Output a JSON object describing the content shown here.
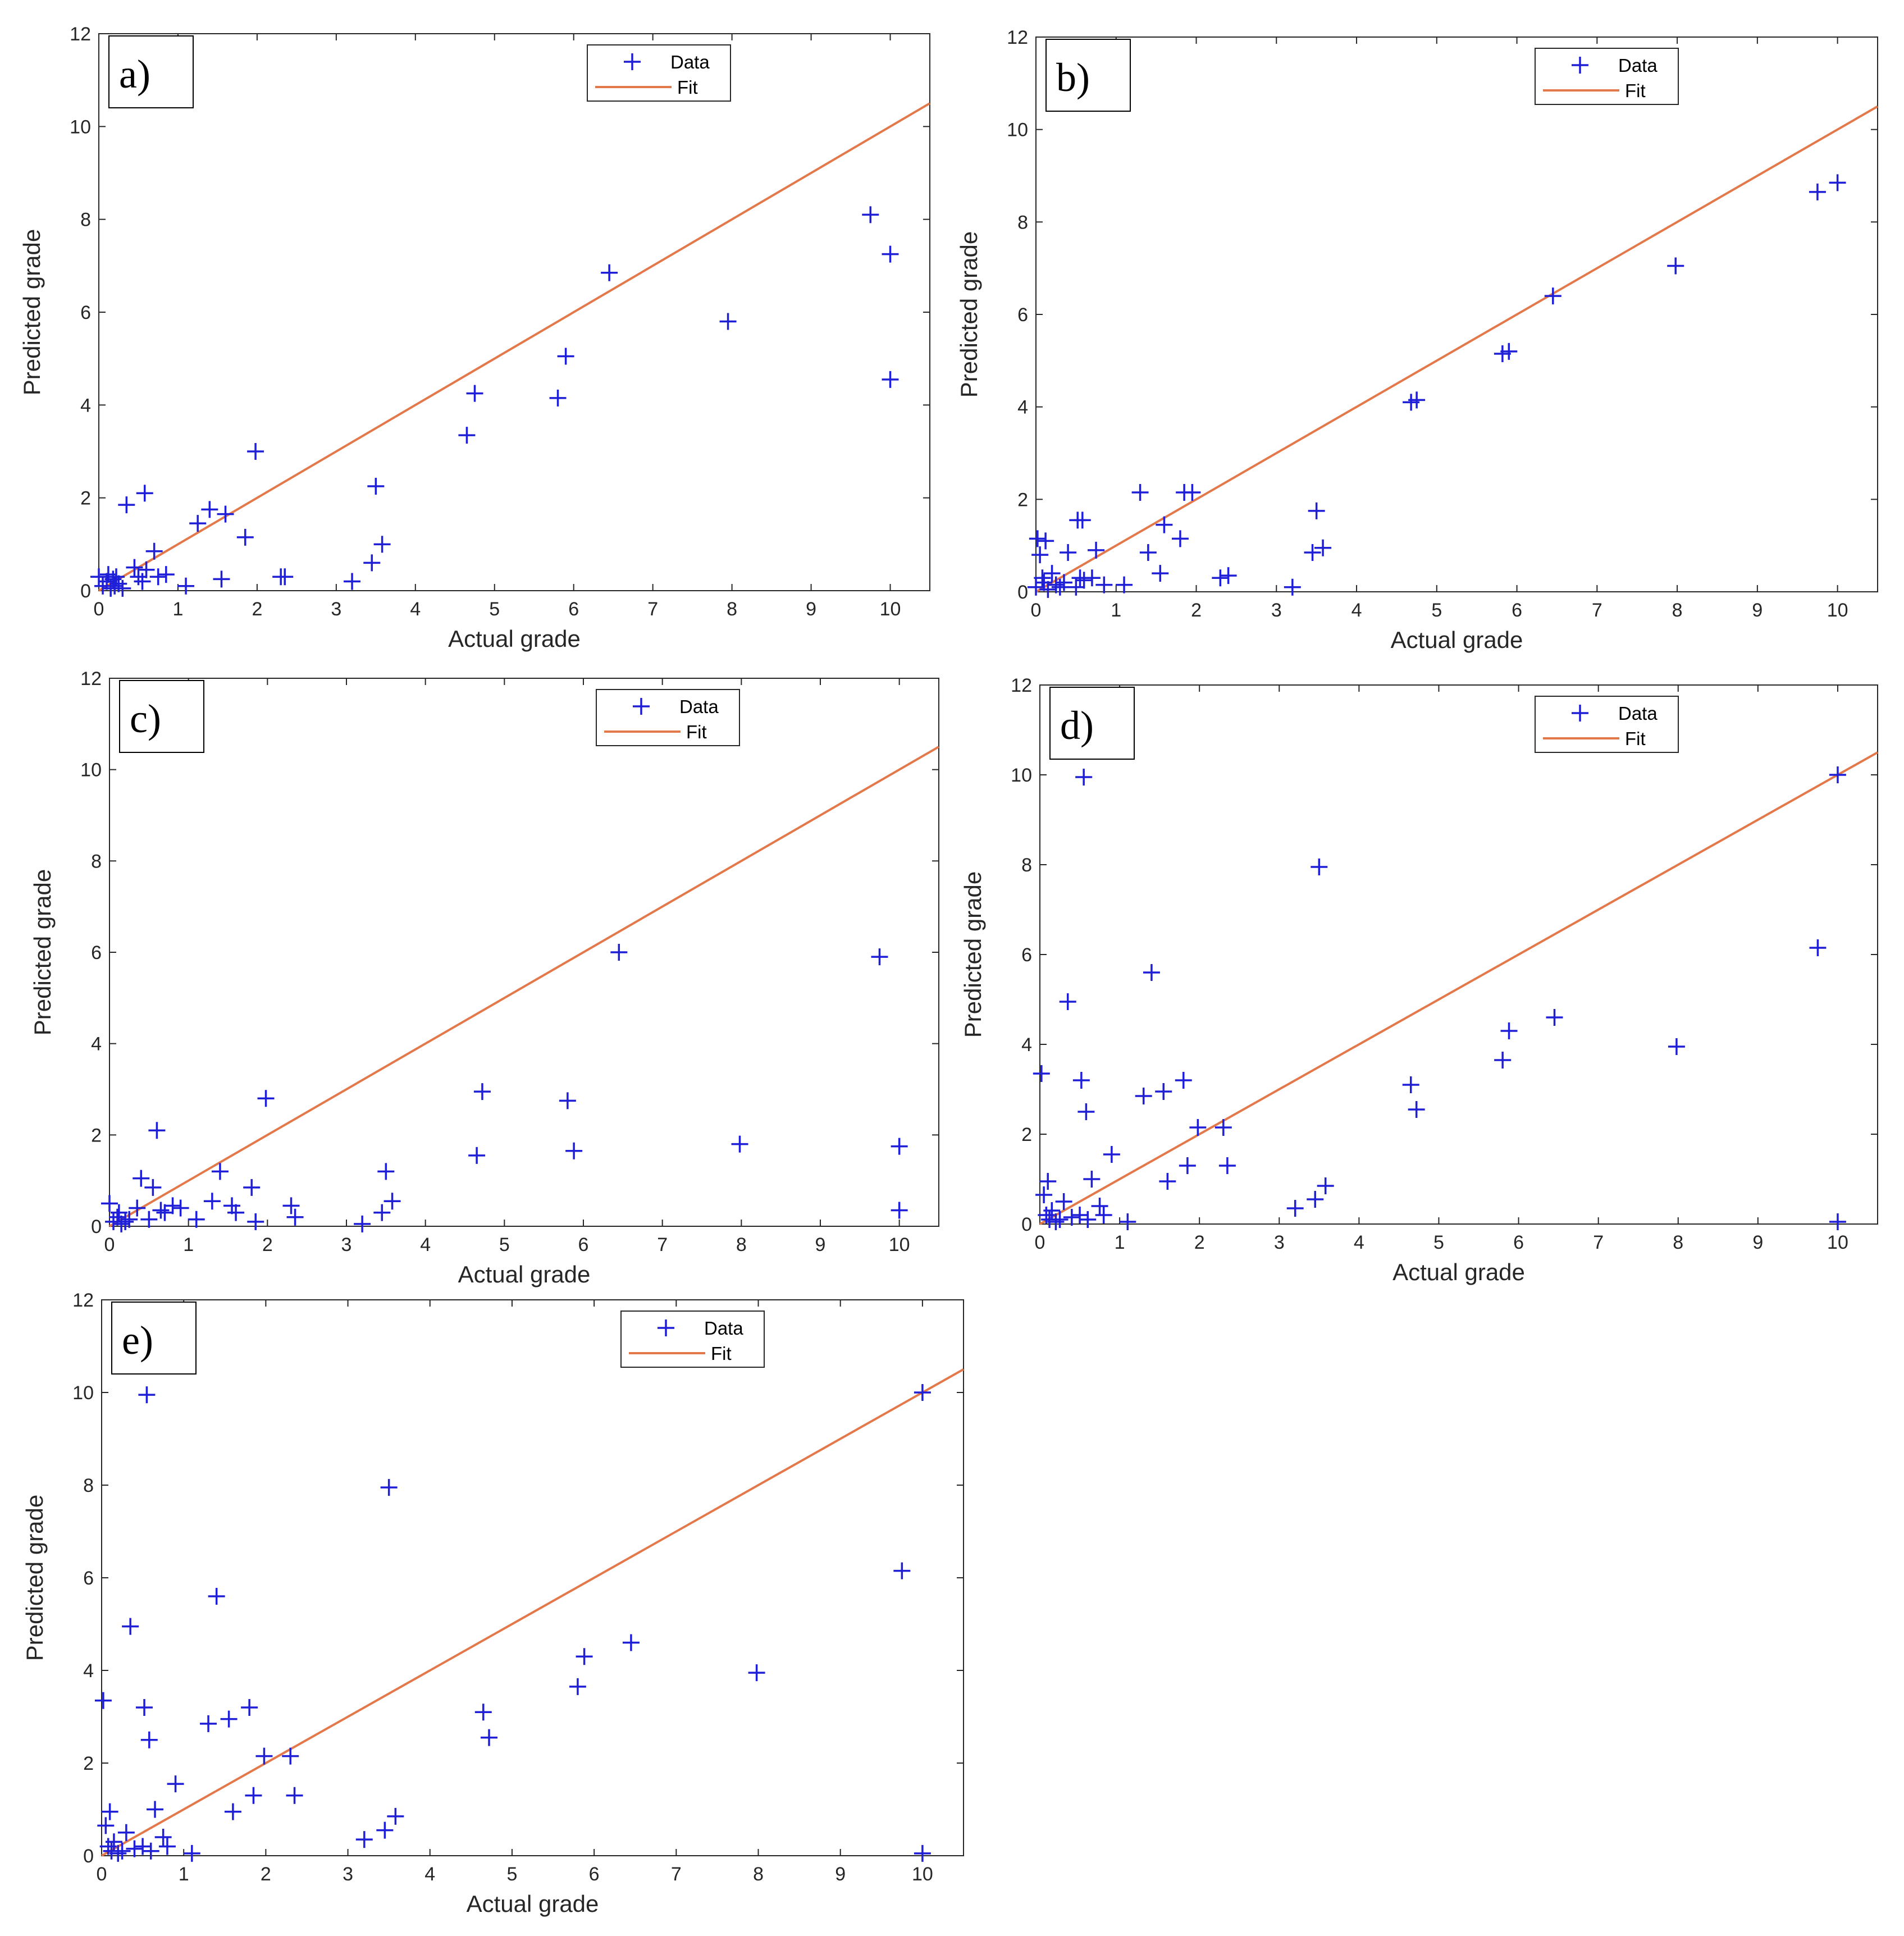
{
  "colors": {
    "data": "#1f1fd8",
    "fit": "#e3784a",
    "axis": "#262626"
  },
  "chart_data": [
    {
      "type": "scatter",
      "panel_label": "a)",
      "xlabel": "Actual grade",
      "ylabel": "Predicted grade",
      "xlim": [
        0,
        10.5
      ],
      "ylim": [
        0,
        12
      ],
      "xticks": [
        "0",
        "1",
        "2",
        "3",
        "4",
        "5",
        "6",
        "7",
        "8",
        "9",
        "10"
      ],
      "yticks": [
        "0",
        "2",
        "4",
        "6",
        "8",
        "10",
        "12"
      ],
      "legend": {
        "data_label": "Data",
        "fit_label": "Fit",
        "position": "top-right"
      },
      "fit": {
        "x": [
          0,
          10.5
        ],
        "y": [
          0,
          10.5
        ]
      },
      "series": [
        {
          "name": "Data",
          "points": [
            [
              0,
              0.3
            ],
            [
              0.05,
              0.1
            ],
            [
              0.1,
              0.2
            ],
            [
              0.12,
              0.35
            ],
            [
              0.15,
              0.05
            ],
            [
              0.18,
              0.25
            ],
            [
              0.2,
              0.1
            ],
            [
              0.22,
              0.3
            ],
            [
              0.25,
              0.15
            ],
            [
              0.3,
              0.05
            ],
            [
              0.35,
              1.85
            ],
            [
              0.45,
              0.5
            ],
            [
              0.5,
              0.3
            ],
            [
              0.55,
              0.2
            ],
            [
              0.58,
              2.1
            ],
            [
              0.6,
              0.45
            ],
            [
              0.7,
              0.85
            ],
            [
              0.75,
              0.3
            ],
            [
              0.85,
              0.35
            ],
            [
              1.1,
              0.1
            ],
            [
              1.25,
              1.45
            ],
            [
              1.4,
              1.75
            ],
            [
              1.55,
              0.25
            ],
            [
              1.6,
              1.65
            ],
            [
              1.85,
              1.15
            ],
            [
              1.98,
              3.0
            ],
            [
              2.3,
              0.3
            ],
            [
              2.35,
              0.3
            ],
            [
              3.2,
              0.2
            ],
            [
              3.45,
              0.6
            ],
            [
              3.5,
              2.25
            ],
            [
              3.58,
              1.0
            ],
            [
              4.65,
              3.35
            ],
            [
              4.75,
              4.25
            ],
            [
              5.8,
              4.15
            ],
            [
              5.9,
              5.05
            ],
            [
              6.45,
              6.85
            ],
            [
              7.95,
              5.8
            ],
            [
              9.75,
              8.1
            ],
            [
              10.0,
              7.25
            ],
            [
              10.0,
              4.55
            ]
          ]
        }
      ]
    },
    {
      "type": "scatter",
      "panel_label": "b)",
      "xlabel": "Actual grade",
      "ylabel": "Predicted grade",
      "xlim": [
        0,
        10.5
      ],
      "ylim": [
        0,
        12
      ],
      "xticks": [
        "0",
        "1",
        "2",
        "3",
        "4",
        "5",
        "6",
        "7",
        "8",
        "9",
        "10"
      ],
      "yticks": [
        "0",
        "2",
        "4",
        "6",
        "8",
        "10",
        "12"
      ],
      "legend": {
        "data_label": "Data",
        "fit_label": "Fit",
        "position": "top-right"
      },
      "fit": {
        "x": [
          0,
          10.5
        ],
        "y": [
          0,
          10.5
        ]
      },
      "series": [
        {
          "name": "Data",
          "points": [
            [
              0,
              0.1
            ],
            [
              0.02,
              1.15
            ],
            [
              0.05,
              0.8
            ],
            [
              0.08,
              0.3
            ],
            [
              0.1,
              0.2
            ],
            [
              0.12,
              1.1
            ],
            [
              0.15,
              0.05
            ],
            [
              0.2,
              0.4
            ],
            [
              0.25,
              0.15
            ],
            [
              0.3,
              0.1
            ],
            [
              0.35,
              0.2
            ],
            [
              0.4,
              0.85
            ],
            [
              0.5,
              0.1
            ],
            [
              0.52,
              1.55
            ],
            [
              0.55,
              0.3
            ],
            [
              0.58,
              1.55
            ],
            [
              0.6,
              0.25
            ],
            [
              0.7,
              0.3
            ],
            [
              0.75,
              0.9
            ],
            [
              0.85,
              0.15
            ],
            [
              1.1,
              0.15
            ],
            [
              1.3,
              2.15
            ],
            [
              1.4,
              0.85
            ],
            [
              1.55,
              0.4
            ],
            [
              1.6,
              1.45
            ],
            [
              1.8,
              1.15
            ],
            [
              1.85,
              2.15
            ],
            [
              1.95,
              2.15
            ],
            [
              2.3,
              0.3
            ],
            [
              2.4,
              0.35
            ],
            [
              3.2,
              0.1
            ],
            [
              3.45,
              0.85
            ],
            [
              3.5,
              1.75
            ],
            [
              3.58,
              0.95
            ],
            [
              4.68,
              4.1
            ],
            [
              4.75,
              4.15
            ],
            [
              5.82,
              5.15
            ],
            [
              5.9,
              5.2
            ],
            [
              6.45,
              6.4
            ],
            [
              7.98,
              7.05
            ],
            [
              9.75,
              8.65
            ],
            [
              10.0,
              8.85
            ]
          ]
        }
      ]
    },
    {
      "type": "scatter",
      "panel_label": "c)",
      "xlabel": "Actual grade",
      "ylabel": "Predicted grade",
      "xlim": [
        0,
        10.5
      ],
      "ylim": [
        0,
        12
      ],
      "xticks": [
        "0",
        "1",
        "2",
        "3",
        "4",
        "5",
        "6",
        "7",
        "8",
        "9",
        "10"
      ],
      "yticks": [
        "0",
        "2",
        "4",
        "6",
        "8",
        "10",
        "12"
      ],
      "legend": {
        "data_label": "Data",
        "fit_label": "Fit",
        "position": "top-right"
      },
      "fit": {
        "x": [
          0,
          10.5
        ],
        "y": [
          0,
          10.5
        ]
      },
      "series": [
        {
          "name": "Data",
          "points": [
            [
              0,
              0.5
            ],
            [
              0.05,
              0.1
            ],
            [
              0.1,
              0.2
            ],
            [
              0.12,
              0.3
            ],
            [
              0.15,
              0.05
            ],
            [
              0.2,
              0.1
            ],
            [
              0.25,
              0.15
            ],
            [
              0.35,
              0.4
            ],
            [
              0.4,
              1.05
            ],
            [
              0.5,
              0.15
            ],
            [
              0.55,
              0.85
            ],
            [
              0.6,
              2.1
            ],
            [
              0.65,
              0.35
            ],
            [
              0.7,
              0.3
            ],
            [
              0.8,
              0.45
            ],
            [
              0.9,
              0.4
            ],
            [
              1.1,
              0.15
            ],
            [
              1.3,
              0.55
            ],
            [
              1.4,
              1.2
            ],
            [
              1.55,
              0.45
            ],
            [
              1.6,
              0.3
            ],
            [
              1.8,
              0.85
            ],
            [
              1.85,
              0.1
            ],
            [
              1.98,
              2.8
            ],
            [
              2.3,
              0.45
            ],
            [
              2.35,
              0.2
            ],
            [
              3.2,
              0.05
            ],
            [
              3.45,
              0.3
            ],
            [
              3.5,
              1.2
            ],
            [
              3.58,
              0.55
            ],
            [
              4.65,
              1.55
            ],
            [
              4.72,
              2.95
            ],
            [
              5.8,
              2.75
            ],
            [
              5.88,
              1.65
            ],
            [
              6.45,
              6.0
            ],
            [
              7.98,
              1.8
            ],
            [
              9.75,
              5.9
            ],
            [
              10.0,
              1.75
            ],
            [
              10.0,
              0.35
            ]
          ]
        }
      ]
    },
    {
      "type": "scatter",
      "panel_label": "d)",
      "xlabel": "Actual grade",
      "ylabel": "Predicted grade",
      "xlim": [
        0,
        10.5
      ],
      "ylim": [
        0,
        12
      ],
      "xticks": [
        "0",
        "1",
        "2",
        "3",
        "4",
        "5",
        "6",
        "7",
        "8",
        "9",
        "10"
      ],
      "yticks": [
        "0",
        "2",
        "4",
        "6",
        "8",
        "10",
        "12"
      ],
      "legend": {
        "data_label": "Data",
        "fit_label": "Fit",
        "position": "top-right"
      },
      "fit": {
        "x": [
          0,
          10.5
        ],
        "y": [
          0,
          10.5
        ]
      },
      "series": [
        {
          "name": "Data",
          "points": [
            [
              0.02,
              3.35
            ],
            [
              0.05,
              0.65
            ],
            [
              0.08,
              0.2
            ],
            [
              0.1,
              0.95
            ],
            [
              0.12,
              0.1
            ],
            [
              0.15,
              0.3
            ],
            [
              0.2,
              0.05
            ],
            [
              0.25,
              0.1
            ],
            [
              0.3,
              0.5
            ],
            [
              0.35,
              4.95
            ],
            [
              0.4,
              0.15
            ],
            [
              0.5,
              0.2
            ],
            [
              0.52,
              3.2
            ],
            [
              0.55,
              9.95
            ],
            [
              0.58,
              2.5
            ],
            [
              0.6,
              0.1
            ],
            [
              0.65,
              1.0
            ],
            [
              0.75,
              0.4
            ],
            [
              0.8,
              0.2
            ],
            [
              0.9,
              1.55
            ],
            [
              1.1,
              0.05
            ],
            [
              1.3,
              2.85
            ],
            [
              1.4,
              5.6
            ],
            [
              1.55,
              2.95
            ],
            [
              1.6,
              0.95
            ],
            [
              1.8,
              3.2
            ],
            [
              1.85,
              1.3
            ],
            [
              1.98,
              2.15
            ],
            [
              2.3,
              2.15
            ],
            [
              2.35,
              1.3
            ],
            [
              3.2,
              0.35
            ],
            [
              3.45,
              0.55
            ],
            [
              3.5,
              7.95
            ],
            [
              3.58,
              0.85
            ],
            [
              4.65,
              3.1
            ],
            [
              4.72,
              2.55
            ],
            [
              5.8,
              3.65
            ],
            [
              5.88,
              4.3
            ],
            [
              6.45,
              4.6
            ],
            [
              7.98,
              3.95
            ],
            [
              9.75,
              6.15
            ],
            [
              10.0,
              10.0
            ],
            [
              10.0,
              0.05
            ]
          ]
        }
      ]
    },
    {
      "type": "scatter",
      "panel_label": "e)",
      "xlabel": "Actual grade",
      "ylabel": "Predicted grade",
      "xlim": [
        0,
        10.5
      ],
      "ylim": [
        0,
        12
      ],
      "xticks": [
        "0",
        "1",
        "2",
        "3",
        "4",
        "5",
        "6",
        "7",
        "8",
        "9",
        "10"
      ],
      "yticks": [
        "0",
        "2",
        "4",
        "6",
        "8",
        "10",
        "12"
      ],
      "legend": {
        "data_label": "Data",
        "fit_label": "Fit",
        "position": "top-right"
      },
      "fit": {
        "x": [
          0,
          10.5
        ],
        "y": [
          0,
          10.5
        ]
      },
      "series": [
        {
          "name": "Data",
          "points": [
            [
              0.02,
              3.35
            ],
            [
              0.05,
              0.65
            ],
            [
              0.08,
              0.2
            ],
            [
              0.1,
              0.95
            ],
            [
              0.12,
              0.1
            ],
            [
              0.15,
              0.3
            ],
            [
              0.2,
              0.05
            ],
            [
              0.25,
              0.1
            ],
            [
              0.3,
              0.5
            ],
            [
              0.35,
              4.95
            ],
            [
              0.4,
              0.15
            ],
            [
              0.5,
              0.2
            ],
            [
              0.52,
              3.2
            ],
            [
              0.55,
              9.95
            ],
            [
              0.58,
              2.5
            ],
            [
              0.6,
              0.1
            ],
            [
              0.65,
              1.0
            ],
            [
              0.75,
              0.4
            ],
            [
              0.8,
              0.2
            ],
            [
              0.9,
              1.55
            ],
            [
              1.1,
              0.05
            ],
            [
              1.3,
              2.85
            ],
            [
              1.4,
              5.6
            ],
            [
              1.55,
              2.95
            ],
            [
              1.6,
              0.95
            ],
            [
              1.8,
              3.2
            ],
            [
              1.85,
              1.3
            ],
            [
              1.98,
              2.15
            ],
            [
              2.3,
              2.15
            ],
            [
              2.35,
              1.3
            ],
            [
              3.2,
              0.35
            ],
            [
              3.45,
              0.55
            ],
            [
              3.5,
              7.95
            ],
            [
              3.58,
              0.85
            ],
            [
              4.65,
              3.1
            ],
            [
              4.72,
              2.55
            ],
            [
              5.8,
              3.65
            ],
            [
              5.88,
              4.3
            ],
            [
              6.45,
              4.6
            ],
            [
              7.98,
              3.95
            ],
            [
              9.75,
              6.15
            ],
            [
              10.0,
              10.0
            ],
            [
              10.0,
              0.05
            ]
          ]
        }
      ]
    }
  ]
}
